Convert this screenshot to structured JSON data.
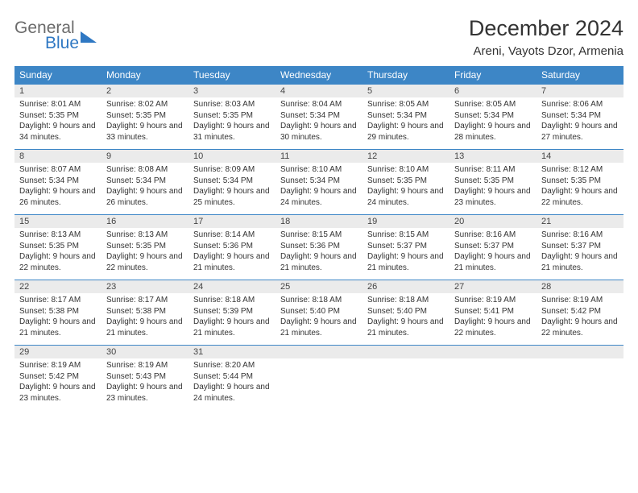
{
  "logo": {
    "line1": "General",
    "line2": "Blue"
  },
  "title": "December 2024",
  "location": "Areni, Vayots Dzor, Armenia",
  "colors": {
    "header_bar": "#3d86c6",
    "daynum_bg": "#ebebeb",
    "row_border": "#3d86c6",
    "text": "#333333",
    "logo_gray": "#6b6b6b",
    "logo_blue": "#2f78c3",
    "background": "#ffffff"
  },
  "fonts": {
    "title_pt": 27,
    "location_pt": 15,
    "dayheader_pt": 12,
    "daynum_pt": 11,
    "body_pt": 10
  },
  "day_headers": [
    "Sunday",
    "Monday",
    "Tuesday",
    "Wednesday",
    "Thursday",
    "Friday",
    "Saturday"
  ],
  "weeks": [
    [
      {
        "n": "1",
        "sr": "8:01 AM",
        "ss": "5:35 PM",
        "dl": "9 hours and 34 minutes."
      },
      {
        "n": "2",
        "sr": "8:02 AM",
        "ss": "5:35 PM",
        "dl": "9 hours and 33 minutes."
      },
      {
        "n": "3",
        "sr": "8:03 AM",
        "ss": "5:35 PM",
        "dl": "9 hours and 31 minutes."
      },
      {
        "n": "4",
        "sr": "8:04 AM",
        "ss": "5:34 PM",
        "dl": "9 hours and 30 minutes."
      },
      {
        "n": "5",
        "sr": "8:05 AM",
        "ss": "5:34 PM",
        "dl": "9 hours and 29 minutes."
      },
      {
        "n": "6",
        "sr": "8:05 AM",
        "ss": "5:34 PM",
        "dl": "9 hours and 28 minutes."
      },
      {
        "n": "7",
        "sr": "8:06 AM",
        "ss": "5:34 PM",
        "dl": "9 hours and 27 minutes."
      }
    ],
    [
      {
        "n": "8",
        "sr": "8:07 AM",
        "ss": "5:34 PM",
        "dl": "9 hours and 26 minutes."
      },
      {
        "n": "9",
        "sr": "8:08 AM",
        "ss": "5:34 PM",
        "dl": "9 hours and 26 minutes."
      },
      {
        "n": "10",
        "sr": "8:09 AM",
        "ss": "5:34 PM",
        "dl": "9 hours and 25 minutes."
      },
      {
        "n": "11",
        "sr": "8:10 AM",
        "ss": "5:34 PM",
        "dl": "9 hours and 24 minutes."
      },
      {
        "n": "12",
        "sr": "8:10 AM",
        "ss": "5:35 PM",
        "dl": "9 hours and 24 minutes."
      },
      {
        "n": "13",
        "sr": "8:11 AM",
        "ss": "5:35 PM",
        "dl": "9 hours and 23 minutes."
      },
      {
        "n": "14",
        "sr": "8:12 AM",
        "ss": "5:35 PM",
        "dl": "9 hours and 22 minutes."
      }
    ],
    [
      {
        "n": "15",
        "sr": "8:13 AM",
        "ss": "5:35 PM",
        "dl": "9 hours and 22 minutes."
      },
      {
        "n": "16",
        "sr": "8:13 AM",
        "ss": "5:35 PM",
        "dl": "9 hours and 22 minutes."
      },
      {
        "n": "17",
        "sr": "8:14 AM",
        "ss": "5:36 PM",
        "dl": "9 hours and 21 minutes."
      },
      {
        "n": "18",
        "sr": "8:15 AM",
        "ss": "5:36 PM",
        "dl": "9 hours and 21 minutes."
      },
      {
        "n": "19",
        "sr": "8:15 AM",
        "ss": "5:37 PM",
        "dl": "9 hours and 21 minutes."
      },
      {
        "n": "20",
        "sr": "8:16 AM",
        "ss": "5:37 PM",
        "dl": "9 hours and 21 minutes."
      },
      {
        "n": "21",
        "sr": "8:16 AM",
        "ss": "5:37 PM",
        "dl": "9 hours and 21 minutes."
      }
    ],
    [
      {
        "n": "22",
        "sr": "8:17 AM",
        "ss": "5:38 PM",
        "dl": "9 hours and 21 minutes."
      },
      {
        "n": "23",
        "sr": "8:17 AM",
        "ss": "5:38 PM",
        "dl": "9 hours and 21 minutes."
      },
      {
        "n": "24",
        "sr": "8:18 AM",
        "ss": "5:39 PM",
        "dl": "9 hours and 21 minutes."
      },
      {
        "n": "25",
        "sr": "8:18 AM",
        "ss": "5:40 PM",
        "dl": "9 hours and 21 minutes."
      },
      {
        "n": "26",
        "sr": "8:18 AM",
        "ss": "5:40 PM",
        "dl": "9 hours and 21 minutes."
      },
      {
        "n": "27",
        "sr": "8:19 AM",
        "ss": "5:41 PM",
        "dl": "9 hours and 22 minutes."
      },
      {
        "n": "28",
        "sr": "8:19 AM",
        "ss": "5:42 PM",
        "dl": "9 hours and 22 minutes."
      }
    ],
    [
      {
        "n": "29",
        "sr": "8:19 AM",
        "ss": "5:42 PM",
        "dl": "9 hours and 23 minutes."
      },
      {
        "n": "30",
        "sr": "8:19 AM",
        "ss": "5:43 PM",
        "dl": "9 hours and 23 minutes."
      },
      {
        "n": "31",
        "sr": "8:20 AM",
        "ss": "5:44 PM",
        "dl": "9 hours and 24 minutes."
      },
      null,
      null,
      null,
      null
    ]
  ],
  "labels": {
    "sunrise": "Sunrise:",
    "sunset": "Sunset:",
    "daylight": "Daylight:"
  }
}
